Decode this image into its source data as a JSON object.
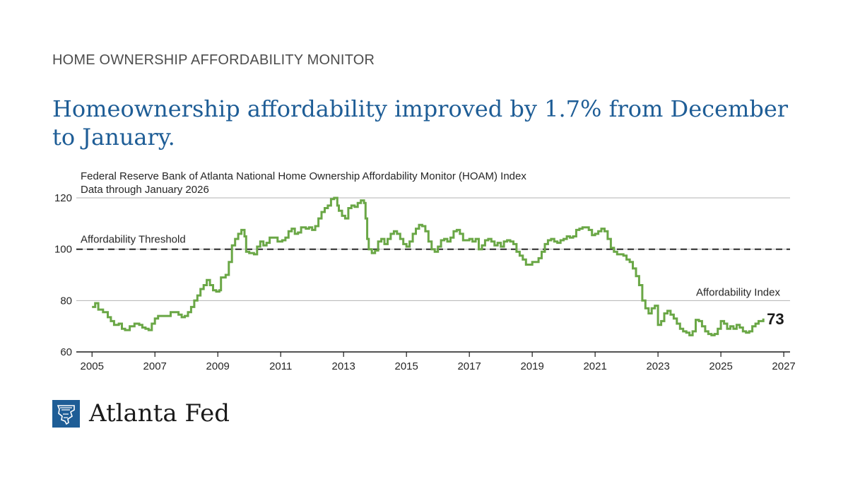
{
  "kicker": "HOME OWNERSHIP AFFORDABILITY MONITOR",
  "headline": "Homeownership affordability improved by 1.7% from December to January.",
  "brand": {
    "name": "Atlanta Fed",
    "color": "#1e5d96"
  },
  "chart_data": {
    "type": "line",
    "title": "Federal Reserve Bank of Atlanta National Home Ownership Affordability Monitor (HOAM) Index",
    "subtitle": "Data through January 2026",
    "xlim": [
      2004.5,
      2027.2
    ],
    "ylim": [
      60,
      120
    ],
    "x_ticks": [
      2005,
      2007,
      2009,
      2011,
      2013,
      2015,
      2017,
      2019,
      2021,
      2023,
      2025,
      2027
    ],
    "y_ticks": [
      60,
      80,
      100,
      120
    ],
    "grid": true,
    "step": true,
    "series": [
      {
        "name": "Affordability Index",
        "color": "#6aa746",
        "end_label": "73",
        "points": [
          [
            2005.0,
            77.5
          ],
          [
            2005.1,
            79
          ],
          [
            2005.2,
            76.5
          ],
          [
            2005.35,
            75.5
          ],
          [
            2005.5,
            73.5
          ],
          [
            2005.6,
            72
          ],
          [
            2005.7,
            70.5
          ],
          [
            2005.85,
            71
          ],
          [
            2005.95,
            69
          ],
          [
            2006.05,
            68.5
          ],
          [
            2006.2,
            70
          ],
          [
            2006.35,
            71
          ],
          [
            2006.5,
            70.5
          ],
          [
            2006.6,
            69.5
          ],
          [
            2006.7,
            69
          ],
          [
            2006.8,
            68.5
          ],
          [
            2006.9,
            71
          ],
          [
            2007.0,
            73
          ],
          [
            2007.1,
            74
          ],
          [
            2007.25,
            74
          ],
          [
            2007.4,
            74
          ],
          [
            2007.5,
            75.5
          ],
          [
            2007.6,
            75.5
          ],
          [
            2007.75,
            74.5
          ],
          [
            2007.85,
            73.5
          ],
          [
            2007.95,
            74
          ],
          [
            2008.05,
            75.5
          ],
          [
            2008.15,
            77.5
          ],
          [
            2008.25,
            80
          ],
          [
            2008.35,
            82
          ],
          [
            2008.45,
            84.5
          ],
          [
            2008.55,
            86
          ],
          [
            2008.65,
            88
          ],
          [
            2008.75,
            86
          ],
          [
            2008.85,
            84
          ],
          [
            2008.95,
            83.5
          ],
          [
            2009.05,
            84
          ],
          [
            2009.1,
            89
          ],
          [
            2009.25,
            90
          ],
          [
            2009.35,
            95
          ],
          [
            2009.45,
            101.5
          ],
          [
            2009.55,
            104
          ],
          [
            2009.65,
            106
          ],
          [
            2009.75,
            107.5
          ],
          [
            2009.85,
            105
          ],
          [
            2009.9,
            99
          ],
          [
            2010.0,
            98.5
          ],
          [
            2010.15,
            98
          ],
          [
            2010.25,
            101
          ],
          [
            2010.35,
            103
          ],
          [
            2010.45,
            101.5
          ],
          [
            2010.55,
            102.5
          ],
          [
            2010.65,
            104.5
          ],
          [
            2010.8,
            104.5
          ],
          [
            2010.9,
            103
          ],
          [
            2011.05,
            103.5
          ],
          [
            2011.15,
            104.5
          ],
          [
            2011.25,
            107
          ],
          [
            2011.35,
            108
          ],
          [
            2011.45,
            106
          ],
          [
            2011.55,
            106.5
          ],
          [
            2011.65,
            108.5
          ],
          [
            2011.8,
            108
          ],
          [
            2011.9,
            108.5
          ],
          [
            2012.0,
            107.5
          ],
          [
            2012.1,
            109
          ],
          [
            2012.2,
            112
          ],
          [
            2012.3,
            114.5
          ],
          [
            2012.4,
            116
          ],
          [
            2012.5,
            117
          ],
          [
            2012.6,
            119.5
          ],
          [
            2012.7,
            120
          ],
          [
            2012.8,
            117
          ],
          [
            2012.85,
            115
          ],
          [
            2012.95,
            113
          ],
          [
            2013.05,
            112
          ],
          [
            2013.15,
            116
          ],
          [
            2013.25,
            117
          ],
          [
            2013.35,
            116.5
          ],
          [
            2013.45,
            118
          ],
          [
            2013.55,
            119
          ],
          [
            2013.65,
            118
          ],
          [
            2013.7,
            112
          ],
          [
            2013.75,
            104
          ],
          [
            2013.8,
            100
          ],
          [
            2013.9,
            98.5
          ],
          [
            2014.0,
            99.5
          ],
          [
            2014.1,
            103
          ],
          [
            2014.2,
            104
          ],
          [
            2014.3,
            102
          ],
          [
            2014.4,
            104
          ],
          [
            2014.5,
            106
          ],
          [
            2014.6,
            107
          ],
          [
            2014.7,
            106
          ],
          [
            2014.8,
            104
          ],
          [
            2014.9,
            102
          ],
          [
            2015.0,
            101
          ],
          [
            2015.1,
            103
          ],
          [
            2015.2,
            106
          ],
          [
            2015.3,
            108
          ],
          [
            2015.4,
            109.5
          ],
          [
            2015.5,
            109
          ],
          [
            2015.6,
            107
          ],
          [
            2015.7,
            103
          ],
          [
            2015.8,
            100
          ],
          [
            2015.9,
            99
          ],
          [
            2016.0,
            101
          ],
          [
            2016.1,
            103.5
          ],
          [
            2016.2,
            104
          ],
          [
            2016.3,
            103
          ],
          [
            2016.4,
            104.5
          ],
          [
            2016.5,
            107
          ],
          [
            2016.6,
            107.5
          ],
          [
            2016.7,
            106
          ],
          [
            2016.8,
            103.5
          ],
          [
            2016.9,
            103.5
          ],
          [
            2017.0,
            104
          ],
          [
            2017.1,
            103
          ],
          [
            2017.2,
            104
          ],
          [
            2017.3,
            100
          ],
          [
            2017.4,
            101.5
          ],
          [
            2017.5,
            103.5
          ],
          [
            2017.6,
            104
          ],
          [
            2017.7,
            103
          ],
          [
            2017.8,
            101.5
          ],
          [
            2017.9,
            102.5
          ],
          [
            2018.0,
            101
          ],
          [
            2018.1,
            103
          ],
          [
            2018.2,
            103.5
          ],
          [
            2018.3,
            103
          ],
          [
            2018.4,
            102
          ],
          [
            2018.5,
            99
          ],
          [
            2018.6,
            97.5
          ],
          [
            2018.7,
            96
          ],
          [
            2018.8,
            94
          ],
          [
            2018.9,
            94
          ],
          [
            2019.0,
            95
          ],
          [
            2019.1,
            95
          ],
          [
            2019.2,
            96.5
          ],
          [
            2019.3,
            99
          ],
          [
            2019.4,
            102
          ],
          [
            2019.5,
            103.5
          ],
          [
            2019.6,
            104
          ],
          [
            2019.7,
            103
          ],
          [
            2019.8,
            102.5
          ],
          [
            2019.9,
            103.5
          ],
          [
            2020.0,
            104
          ],
          [
            2020.1,
            105
          ],
          [
            2020.2,
            104.5
          ],
          [
            2020.3,
            105
          ],
          [
            2020.4,
            107.5
          ],
          [
            2020.5,
            108
          ],
          [
            2020.6,
            108.5
          ],
          [
            2020.7,
            108.5
          ],
          [
            2020.8,
            107.5
          ],
          [
            2020.9,
            105.5
          ],
          [
            2021.0,
            106
          ],
          [
            2021.1,
            107
          ],
          [
            2021.2,
            108
          ],
          [
            2021.3,
            107
          ],
          [
            2021.4,
            104
          ],
          [
            2021.5,
            100.5
          ],
          [
            2021.6,
            99
          ],
          [
            2021.7,
            98
          ],
          [
            2021.8,
            98
          ],
          [
            2021.9,
            97.5
          ],
          [
            2022.0,
            96
          ],
          [
            2022.1,
            95
          ],
          [
            2022.2,
            92.5
          ],
          [
            2022.3,
            89.5
          ],
          [
            2022.4,
            86
          ],
          [
            2022.5,
            80
          ],
          [
            2022.6,
            77
          ],
          [
            2022.7,
            75
          ],
          [
            2022.8,
            77
          ],
          [
            2022.9,
            78
          ],
          [
            2023.0,
            70.5
          ],
          [
            2023.1,
            72
          ],
          [
            2023.2,
            75
          ],
          [
            2023.3,
            76
          ],
          [
            2023.4,
            74.5
          ],
          [
            2023.5,
            73
          ],
          [
            2023.6,
            71
          ],
          [
            2023.7,
            69
          ],
          [
            2023.8,
            68
          ],
          [
            2023.9,
            67.5
          ],
          [
            2024.0,
            66.5
          ],
          [
            2024.1,
            68
          ],
          [
            2024.2,
            72.5
          ],
          [
            2024.3,
            72
          ],
          [
            2024.4,
            70
          ],
          [
            2024.5,
            68
          ],
          [
            2024.6,
            67
          ],
          [
            2024.7,
            66.5
          ],
          [
            2024.8,
            67
          ],
          [
            2024.9,
            69
          ],
          [
            2025.0,
            72
          ],
          [
            2025.1,
            71
          ],
          [
            2025.2,
            69
          ],
          [
            2025.3,
            70
          ],
          [
            2025.4,
            69
          ],
          [
            2025.5,
            70.5
          ],
          [
            2025.6,
            69.5
          ],
          [
            2025.7,
            68
          ],
          [
            2025.8,
            67.5
          ],
          [
            2025.9,
            68
          ],
          [
            2026.0,
            70
          ],
          [
            2026.1,
            71
          ],
          [
            2026.2,
            72
          ],
          [
            2026.35,
            73
          ]
        ]
      }
    ],
    "annotations": [
      {
        "label": "Affordability Threshold",
        "y": 100,
        "style": "dashed"
      },
      {
        "label": "Affordability Index",
        "x": 2026.35,
        "y": 80
      }
    ]
  }
}
